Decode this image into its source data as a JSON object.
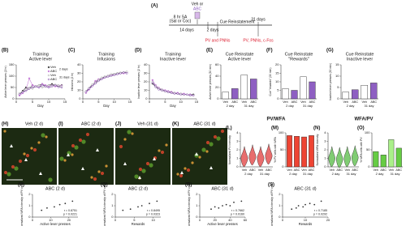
{
  "schematic": {
    "label": "(A)",
    "drug": [
      "Veh or",
      "ABC"
    ],
    "texts": [
      "8 hr SA",
      "(Sal or Coc)",
      "14 days",
      "2 days",
      "Cue Reinstatement",
      "31 days",
      "PV and PNNs",
      "PV, PNNs, c-Fos"
    ]
  },
  "section_titles": [
    "PV/WFA",
    "WFA/PV"
  ],
  "micrographs": [
    {
      "label": "(H)",
      "title": "Veh (2 d)"
    },
    {
      "label": "(I)",
      "title": "ABC (2 d)"
    },
    {
      "label": "(J)",
      "title": "Veh (31 d)"
    },
    {
      "label": "(K)",
      "title": "ABC (31 d)"
    }
  ],
  "chart_data": [
    {
      "type": "line",
      "label": "(B)",
      "title": [
        "Training",
        "Active lever"
      ],
      "x_label": "Day",
      "y_label": "Active lever presses (2 hr)",
      "legend": true,
      "legend_groups": [
        "2 days",
        "31 days"
      ],
      "x": [
        1,
        2,
        3,
        4,
        5,
        6,
        7,
        8,
        9,
        10,
        11,
        12,
        13,
        14
      ],
      "xlim": [
        0,
        15
      ],
      "xticks": [
        0,
        5,
        10,
        15
      ],
      "ylim": [
        0,
        150
      ],
      "yticks": [
        0,
        50,
        100,
        150
      ],
      "series": [
        {
          "name": "Veh",
          "color": "#444444",
          "values": [
            20,
            35,
            50,
            45,
            60,
            55,
            60,
            65,
            55,
            60,
            65,
            60,
            55,
            60
          ]
        },
        {
          "name": "ABC",
          "color": "#c77dd8",
          "values": [
            15,
            25,
            40,
            90,
            60,
            55,
            50,
            65,
            60,
            55,
            60,
            55,
            60,
            58
          ]
        },
        {
          "name": "Veh",
          "color": "#999999",
          "values": [
            25,
            30,
            40,
            50,
            45,
            55,
            60,
            50,
            55,
            60,
            58,
            62,
            60,
            55
          ]
        },
        {
          "name": "ABC",
          "color": "#6a2f96",
          "values": [
            20,
            30,
            35,
            45,
            50,
            55,
            50,
            60,
            55,
            50,
            55,
            60,
            52,
            50
          ]
        }
      ]
    },
    {
      "type": "line",
      "label": "(C)",
      "title": [
        "Training",
        "Infusions"
      ],
      "x_label": "Day",
      "y_label": "Infusions (2 hr)",
      "x": [
        1,
        2,
        3,
        4,
        5,
        6,
        7,
        8,
        9,
        10,
        11,
        12,
        13,
        14
      ],
      "xlim": [
        0,
        15
      ],
      "xticks": [
        0,
        5,
        10,
        15
      ],
      "ylim": [
        0,
        40
      ],
      "yticks": [
        0,
        10,
        20,
        30,
        40
      ],
      "series": [
        {
          "name": "Veh",
          "color": "#444444",
          "values": [
            8,
            12,
            16,
            20,
            22,
            24,
            26,
            27,
            28,
            29,
            30,
            30,
            31,
            31
          ]
        },
        {
          "name": "ABC",
          "color": "#c77dd8",
          "values": [
            7,
            11,
            15,
            21,
            23,
            24,
            25,
            27,
            28,
            28,
            29,
            30,
            30,
            31
          ]
        },
        {
          "name": "Veh",
          "color": "#999999",
          "values": [
            9,
            13,
            17,
            19,
            22,
            25,
            26,
            27,
            29,
            29,
            30,
            31,
            31,
            32
          ]
        },
        {
          "name": "ABC",
          "color": "#6a2f96",
          "values": [
            8,
            12,
            15,
            18,
            21,
            23,
            25,
            26,
            27,
            28,
            29,
            30,
            31,
            30
          ]
        }
      ]
    },
    {
      "type": "line",
      "label": "(D)",
      "title": [
        "Training",
        "Inactive lever"
      ],
      "x_label": "Day",
      "y_label": "Inactive lever presses (2 hr)",
      "x": [
        1,
        2,
        3,
        4,
        5,
        6,
        7,
        8,
        9,
        10,
        11,
        12,
        13,
        14
      ],
      "xlim": [
        0,
        15
      ],
      "xticks": [
        0,
        5,
        10,
        15
      ],
      "ylim": [
        0,
        40
      ],
      "yticks": [
        0,
        10,
        20,
        30,
        40
      ],
      "series": [
        {
          "name": "Veh",
          "color": "#444444",
          "values": [
            18,
            14,
            12,
            10,
            9,
            8,
            8,
            7,
            6,
            6,
            5,
            5,
            5,
            5
          ]
        },
        {
          "name": "ABC",
          "color": "#c77dd8",
          "values": [
            22,
            16,
            13,
            11,
            10,
            9,
            8,
            7,
            7,
            6,
            6,
            5,
            5,
            4
          ]
        },
        {
          "name": "Veh",
          "color": "#999999",
          "values": [
            20,
            15,
            12,
            11,
            9,
            8,
            7,
            7,
            6,
            6,
            5,
            5,
            4,
            4
          ]
        },
        {
          "name": "ABC",
          "color": "#6a2f96",
          "values": [
            19,
            14,
            11,
            10,
            9,
            8,
            7,
            6,
            6,
            5,
            5,
            5,
            4,
            4
          ]
        }
      ]
    },
    {
      "type": "bar",
      "label": "(E)",
      "title": [
        "Cue Reinstate",
        "Active lever"
      ],
      "y_label": "Active lever presses (30 min)",
      "categories": [
        "Veh",
        "ABC",
        "Veh",
        "ABC"
      ],
      "groups": [
        "2 day",
        "31 day"
      ],
      "values": [
        12,
        18,
        42,
        35
      ],
      "colors": [
        "#ffffff",
        "#8e5fc2",
        "#ffffff",
        "#8e5fc2"
      ],
      "ylim": [
        0,
        60
      ],
      "yticks": [
        0,
        20,
        40,
        60
      ]
    },
    {
      "type": "bar",
      "label": "(F)",
      "title": [
        "Cue Reinstate",
        "\"Rewards\""
      ],
      "y_label": "Cue \"rewards\" (30 min)",
      "categories": [
        "Veh",
        "ABC",
        "Veh",
        "ABC"
      ],
      "groups": [
        "2 day",
        "31 day"
      ],
      "values": [
        6,
        5,
        13,
        10
      ],
      "colors": [
        "#ffffff",
        "#8e5fc2",
        "#ffffff",
        "#8e5fc2"
      ],
      "ylim": [
        0,
        20
      ],
      "yticks": [
        0,
        5,
        10,
        15,
        20
      ]
    },
    {
      "type": "bar",
      "label": "(G)",
      "title": [
        "Cue Reinstate",
        "Inactive lever"
      ],
      "y_label": "Inactive lever presses (30 min)",
      "categories": [
        "Veh",
        "ABC",
        "Veh",
        "ABC"
      ],
      "groups": [
        "2 day",
        "31 day"
      ],
      "values": [
        3,
        4,
        6,
        7
      ],
      "colors": [
        "#ffffff",
        "#8e5fc2",
        "#ffffff",
        "#8e5fc2"
      ],
      "ylim": [
        0,
        15
      ],
      "yticks": [
        0,
        5,
        10,
        15
      ]
    },
    {
      "type": "violin",
      "label": "(L)",
      "title": [],
      "y_label": "Normalized PV intensity",
      "categories": [
        "Veh",
        "ABC",
        "Veh",
        "ABC"
      ],
      "groups": [
        "2 day",
        "31 day"
      ],
      "values": [
        1.0,
        1.2,
        1.0,
        1.3
      ],
      "color": "#e03c3c",
      "ylim": [
        0,
        4
      ],
      "yticks": [
        0,
        1,
        2,
        3,
        4
      ]
    },
    {
      "type": "bar",
      "label": "(M)",
      "title": [],
      "y_label": "% PV cells with WFA",
      "categories": [
        "Veh",
        "ABC",
        "Veh",
        "ABC"
      ],
      "groups": [
        "2 day",
        "31 day"
      ],
      "values": [
        92,
        90,
        88,
        92
      ],
      "colors": [
        "#ee4433",
        "#ee4433",
        "#ee4433",
        "#ee4433"
      ],
      "ylim": [
        0,
        100
      ],
      "yticks": [
        0,
        50,
        100
      ]
    },
    {
      "type": "violin",
      "label": "(N)",
      "title": [],
      "y_label": "Normalized WFA intensity",
      "categories": [
        "Veh",
        "ABC",
        "Veh",
        "ABC"
      ],
      "groups": [
        "2 day",
        "31 day"
      ],
      "values": [
        1.0,
        0.9,
        1.0,
        1.1
      ],
      "color": "#55bb44",
      "ylim": [
        0,
        4
      ],
      "yticks": [
        0,
        1,
        2,
        3,
        4
      ]
    },
    {
      "type": "bar",
      "label": "(O)",
      "title": [],
      "y_label": "% WFA cells with PV",
      "categories": [
        "Veh",
        "ABC",
        "Veh",
        "ABC"
      ],
      "groups": [
        "2 day",
        "31 day"
      ],
      "values": [
        45,
        35,
        80,
        55
      ],
      "colors": [
        "#66cc44",
        "#66cc44",
        "#aaf08a",
        "#66cc44"
      ],
      "ylim": [
        0,
        100
      ],
      "yticks": [
        0,
        50,
        100
      ]
    },
    {
      "type": "scatter",
      "label": "(P)",
      "title": [
        "ABC (2 d)"
      ],
      "x_label": "Active lever presses",
      "y_label": "Normalized WFA intensity of PV cells",
      "x": [
        5,
        8,
        12,
        15,
        18,
        22
      ],
      "y": [
        0.6,
        0.8,
        0.9,
        1.1,
        1.2,
        1.4
      ],
      "xlim": [
        0,
        25
      ],
      "xticks": [
        0,
        10,
        20
      ],
      "ylim": [
        0,
        2
      ],
      "yticks": [
        0,
        1,
        2
      ],
      "color": "#333333",
      "annotations": [
        "r = 0.8751",
        "p = 0.0221"
      ]
    },
    {
      "type": "scatter",
      "label": "(Q)",
      "title": [
        "ABC (2 d)"
      ],
      "x_label": "Rewards",
      "y_label": "Normalized WFA intensity of PV cells",
      "x": [
        2,
        4,
        6,
        7,
        9,
        11
      ],
      "y": [
        0.6,
        0.7,
        0.9,
        1.0,
        1.2,
        1.4
      ],
      "xlim": [
        0,
        12
      ],
      "xticks": [
        0,
        5,
        10
      ],
      "ylim": [
        0,
        2
      ],
      "yticks": [
        0,
        1,
        2
      ],
      "color": "#333333",
      "annotations": [
        "r = 0.8495",
        "p = 0.0323"
      ]
    },
    {
      "type": "scatter",
      "label": "(R)",
      "title": [
        "ABC (31 d)"
      ],
      "x_label": "Active lever presses",
      "y_label": "Normalized WFA intensity of PV cells",
      "x": [
        15,
        20,
        25,
        30,
        35,
        40,
        45,
        55
      ],
      "y": [
        0.7,
        0.9,
        0.8,
        1.0,
        1.1,
        1.0,
        1.3,
        1.4
      ],
      "xlim": [
        0,
        60
      ],
      "xticks": [
        0,
        20,
        40,
        60
      ],
      "ylim": [
        0,
        2
      ],
      "yticks": [
        0,
        1,
        2
      ],
      "color": "#333333",
      "annotations": [
        "r = 0.7662",
        "p = 0.0160"
      ]
    },
    {
      "type": "scatter",
      "label": "(S)",
      "title": [
        "ABC (31 d)"
      ],
      "x_label": "Rewards",
      "y_label": "Normalized WFA intensity of PV cells",
      "x": [
        4,
        6,
        7,
        9,
        10,
        12,
        14,
        17
      ],
      "y": [
        0.7,
        0.8,
        1.0,
        0.9,
        1.1,
        1.2,
        1.1,
        1.4
      ],
      "xlim": [
        0,
        20
      ],
      "xticks": [
        0,
        10,
        20
      ],
      "ylim": [
        0,
        2
      ],
      "yticks": [
        0,
        1,
        2
      ],
      "color": "#333333",
      "annotations": [
        "r = 0.7185",
        "p = 0.0292"
      ]
    }
  ]
}
